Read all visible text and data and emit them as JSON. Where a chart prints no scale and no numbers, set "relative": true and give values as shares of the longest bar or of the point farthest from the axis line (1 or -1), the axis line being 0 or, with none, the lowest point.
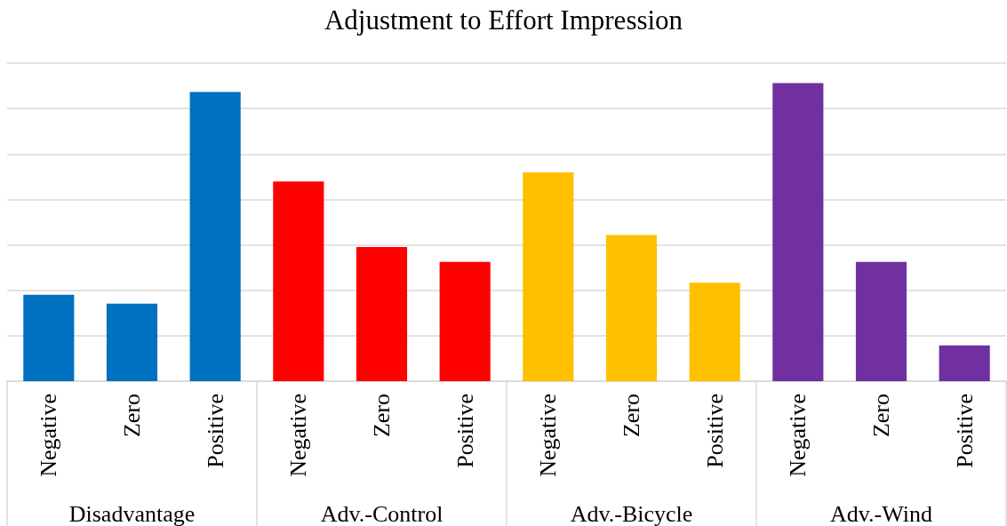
{
  "chart_data": {
    "type": "bar",
    "title": "Adjustment to Effort Impression",
    "categories": [
      "Negative",
      "Zero",
      "Positive",
      "Negative",
      "Zero",
      "Positive",
      "Negative",
      "Zero",
      "Positive",
      "Negative",
      "Zero",
      "Positive"
    ],
    "values": [
      0.29,
      0.26,
      0.97,
      0.67,
      0.45,
      0.4,
      0.7,
      0.49,
      0.33,
      1,
      0.4,
      0.12
    ],
    "colors": [
      "#0070c0",
      "#0070c0",
      "#0070c0",
      "#ff0000",
      "#ff0000",
      "#ff0000",
      "#ffc000",
      "#ffc000",
      "#ffc000",
      "#7030a0",
      "#7030a0",
      "#7030a0"
    ],
    "annotations": [
      "Disadvantage",
      "Adv.-Control",
      "Adv.-Bicycle",
      "Adv.-Wind"
    ],
    "relative": true,
    "grid": "y"
  }
}
